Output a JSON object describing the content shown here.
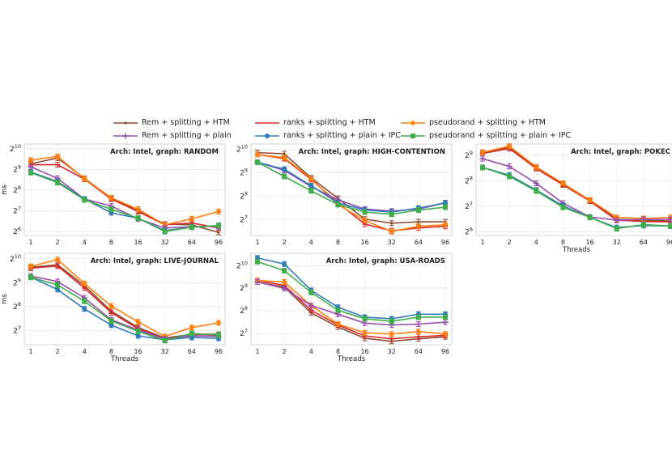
{
  "legend": [
    {
      "label": "Rem + splitting + HTM",
      "color": "#8c4a2f",
      "marker": "dot"
    },
    {
      "label": "ranks + splitting + HTM",
      "color": "#d62728",
      "marker": "dash"
    },
    {
      "label": "pseudorand + splitting + HTM",
      "color": "#ff7f0e",
      "marker": "diamond"
    },
    {
      "label": "Rem + splitting + plain",
      "color": "#9a4db0",
      "marker": "plus"
    },
    {
      "label": "ranks + splitting + plain + IPC",
      "color": "#2e7bb8",
      "marker": "circle"
    },
    {
      "label": "pseudorand + splitting + plain + IPC",
      "color": "#3fae4a",
      "marker": "square"
    }
  ],
  "chart_data": [
    {
      "type": "line",
      "title": "Arch: Intel, graph: RANDOM",
      "ylabel": "ms",
      "xlabel": "",
      "yscale": "log2",
      "ylim": [
        56,
        1200
      ],
      "yticks": [
        {
          "v": 64,
          "e": "6"
        },
        {
          "v": 128,
          "e": "7"
        },
        {
          "v": 256,
          "e": "8"
        },
        {
          "v": 512,
          "e": "9"
        },
        {
          "v": 1024,
          "e": "10"
        }
      ],
      "categories": [
        "1",
        "2",
        "4",
        "8",
        "16",
        "32",
        "64",
        "96"
      ],
      "series": [
        {
          "name": "Rem + splitting + HTM",
          "values": [
            620,
            750,
            380,
            195,
            128,
            82,
            80,
            62
          ]
        },
        {
          "name": "ranks + splitting + HTM",
          "values": [
            600,
            600,
            370,
            190,
            125,
            80,
            85,
            72
          ]
        },
        {
          "name": "pseudorand + splitting + HTM",
          "values": [
            700,
            790,
            375,
            198,
            135,
            80,
            98,
            125
          ]
        },
        {
          "name": "Rem + splitting + plain",
          "values": [
            560,
            380,
            190,
            150,
            98,
            72,
            75,
            76
          ]
        },
        {
          "name": "ranks + splitting + plain + IPC",
          "values": [
            470,
            340,
            190,
            120,
            100,
            66,
            74,
            78
          ]
        },
        {
          "name": "pseudorand + splitting + plain + IPC",
          "values": [
            460,
            330,
            185,
            135,
            100,
            64,
            74,
            78
          ]
        }
      ]
    },
    {
      "type": "line",
      "title": "Arch: Intel, graph: HIGH-CONTENTION",
      "ylabel": "",
      "xlabel": "",
      "yscale": "log2",
      "ylim": [
        80,
        1200
      ],
      "yticks": [
        {
          "v": 128,
          "e": "7"
        },
        {
          "v": 256,
          "e": "8"
        },
        {
          "v": 512,
          "e": "9"
        },
        {
          "v": 1024,
          "e": "10"
        }
      ],
      "categories": [
        "1",
        "2",
        "4",
        "8",
        "16",
        "32",
        "64",
        "96"
      ],
      "series": [
        {
          "name": "Rem + splitting + HTM",
          "values": [
            930,
            900,
            440,
            240,
            130,
            115,
            120,
            120
          ]
        },
        {
          "name": "ranks + splitting + HTM",
          "values": [
            880,
            780,
            420,
            210,
            112,
            92,
            100,
            105
          ]
        },
        {
          "name": "pseudorand + splitting + HTM",
          "values": [
            880,
            800,
            430,
            200,
            125,
            90,
            105,
            110
          ]
        },
        {
          "name": "Rem + splitting + plain",
          "values": [
            700,
            550,
            340,
            230,
            175,
            165,
            175,
            210
          ]
        },
        {
          "name": "ranks + splitting + plain + IPC",
          "values": [
            700,
            570,
            350,
            210,
            170,
            160,
            180,
            210
          ]
        },
        {
          "name": "pseudorand + splitting + plain + IPC",
          "values": [
            700,
            460,
            300,
            200,
            160,
            150,
            170,
            185
          ]
        }
      ]
    },
    {
      "type": "line",
      "title": "Arch: Intel, graph: POKEC",
      "ylabel": "",
      "xlabel": "Threads",
      "yscale": "log2",
      "ylim": [
        58,
        700
      ],
      "yticks": [
        {
          "v": 64,
          "e": "6"
        },
        {
          "v": 128,
          "e": "7"
        },
        {
          "v": 256,
          "e": "8"
        },
        {
          "v": 512,
          "e": "9"
        }
      ],
      "categories": [
        "1",
        "2",
        "4",
        "8",
        "16",
        "32",
        "64",
        "96"
      ],
      "series": [
        {
          "name": "Rem + splitting + HTM",
          "values": [
            560,
            640,
            370,
            235,
            150,
            90,
            88,
            86
          ]
        },
        {
          "name": "ranks + splitting + HTM",
          "values": [
            540,
            620,
            360,
            230,
            148,
            88,
            85,
            84
          ]
        },
        {
          "name": "pseudorand + splitting + HTM",
          "values": [
            560,
            660,
            375,
            240,
            152,
            95,
            92,
            95
          ]
        },
        {
          "name": "Rem + splitting + plain",
          "values": [
            470,
            380,
            240,
            140,
            96,
            88,
            90,
            90
          ]
        },
        {
          "name": "ranks + splitting + plain + IPC",
          "values": [
            370,
            300,
            200,
            130,
            95,
            72,
            76,
            75
          ]
        },
        {
          "name": "pseudorand + splitting + plain + IPC",
          "values": [
            370,
            290,
            195,
            125,
            95,
            70,
            78,
            75
          ]
        }
      ]
    },
    {
      "type": "line",
      "title": "Arch: Intel, graph: LIVE-JOURNAL",
      "ylabel": "ms",
      "xlabel": "Threads",
      "yscale": "log2",
      "ylim": [
        85,
        1200
      ],
      "yticks": [
        {
          "v": 128,
          "e": "7"
        },
        {
          "v": 256,
          "e": "8"
        },
        {
          "v": 512,
          "e": "9"
        },
        {
          "v": 1024,
          "e": "10"
        }
      ],
      "categories": [
        "1",
        "2",
        "4",
        "8",
        "16",
        "32",
        "64",
        "96"
      ],
      "series": [
        {
          "name": "Rem + splitting + HTM",
          "values": [
            800,
            860,
            470,
            225,
            140,
            103,
            115,
            115
          ]
        },
        {
          "name": "ranks + splitting + HTM",
          "values": [
            780,
            830,
            440,
            215,
            135,
            100,
            110,
            110
          ]
        },
        {
          "name": "pseudorand + splitting + HTM",
          "values": [
            820,
            1000,
            500,
            260,
            165,
            108,
            140,
            160
          ]
        },
        {
          "name": "Rem + splitting + plain",
          "values": [
            620,
            530,
            330,
            175,
            130,
            100,
            110,
            108
          ]
        },
        {
          "name": "ranks + splitting + plain + IPC",
          "values": [
            600,
            420,
            240,
            150,
            110,
            98,
            105,
            102
          ]
        },
        {
          "name": "pseudorand + splitting + plain + IPC",
          "values": [
            600,
            480,
            300,
            170,
            125,
            96,
            118,
            112
          ]
        }
      ]
    },
    {
      "type": "line",
      "title": "Arch: Intel, graph: USA-ROADS",
      "ylabel": "",
      "xlabel": "Threads",
      "yscale": "log2",
      "ylim": [
        90,
        1500
      ],
      "yticks": [
        {
          "v": 128,
          "e": "7"
        },
        {
          "v": 256,
          "e": "8"
        },
        {
          "v": 512,
          "e": "9"
        },
        {
          "v": 1024,
          "e": "10"
        }
      ],
      "categories": [
        "1",
        "2",
        "4",
        "8",
        "16",
        "32",
        "64",
        "96"
      ],
      "series": [
        {
          "name": "Rem + splitting + HTM",
          "values": [
            620,
            530,
            240,
            155,
            110,
            100,
            108,
            115
          ]
        },
        {
          "name": "ranks + splitting + HTM",
          "values": [
            650,
            560,
            260,
            165,
            118,
            108,
            115,
            120
          ]
        },
        {
          "name": "pseudorand + splitting + HTM",
          "values": [
            650,
            620,
            300,
            170,
            130,
            125,
            135,
            125
          ]
        },
        {
          "name": "Rem + splitting + plain",
          "values": [
            620,
            510,
            300,
            230,
            175,
            165,
            170,
            180
          ]
        },
        {
          "name": "ranks + splitting + plain + IPC",
          "values": [
            1300,
            1080,
            480,
            285,
            210,
            200,
            230,
            230
          ]
        },
        {
          "name": "pseudorand + splitting + plain + IPC",
          "values": [
            1160,
            880,
            450,
            260,
            200,
            185,
            210,
            210
          ]
        }
      ]
    }
  ]
}
